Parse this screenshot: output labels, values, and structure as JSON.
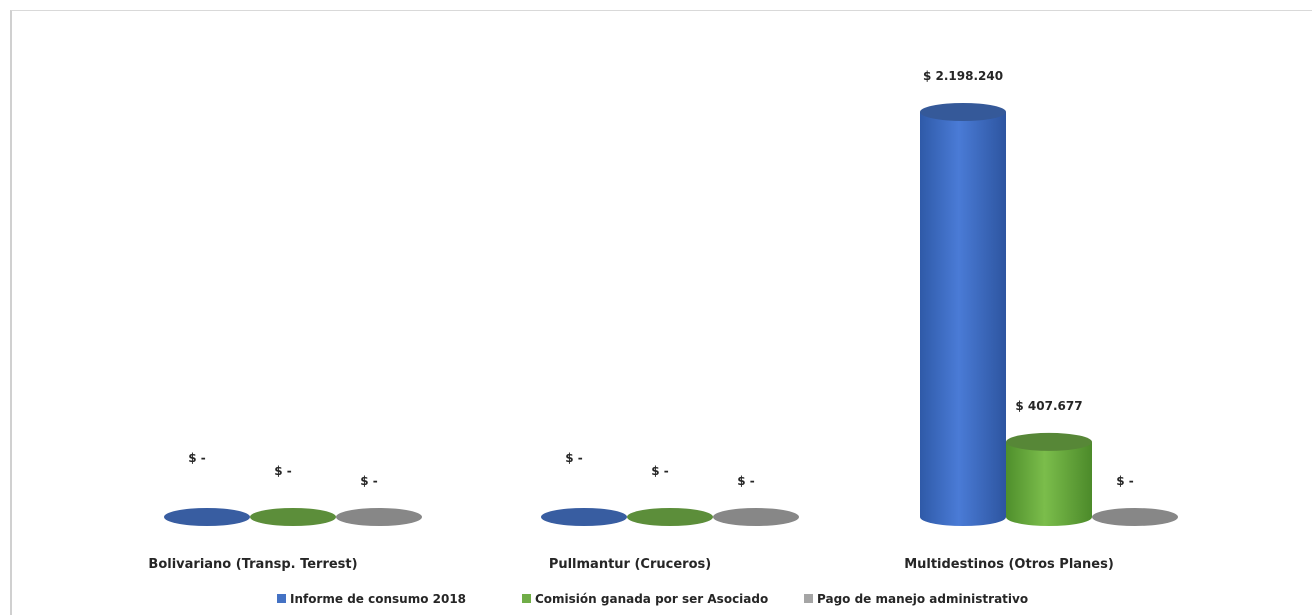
{
  "chart_data": {
    "type": "bar",
    "categories": [
      "Bolivariano (Transp. Terrest)",
      "Pullmantur (Cruceros)",
      "Multidestinos (Otros Planes)"
    ],
    "series": [
      {
        "name": "Informe de consumo 2018",
        "values": [
          0,
          0,
          2198240
        ],
        "labels": [
          "$ -",
          "$ -",
          "$ 2.198.240"
        ],
        "color": "#4472c4"
      },
      {
        "name": "Comisión ganada por ser Asociado",
        "values": [
          0,
          0,
          407677
        ],
        "labels": [
          "$ -",
          "$ -",
          "$ 407.677"
        ],
        "color": "#70ad47"
      },
      {
        "name": "Pago de manejo administrativo",
        "values": [
          0,
          0,
          0
        ],
        "labels": [
          "$ -",
          "$ -",
          "$ -"
        ],
        "color": "#a5a5a5"
      }
    ],
    "legend_position": "bottom",
    "grid": false,
    "bar_shape": "cylinder"
  }
}
